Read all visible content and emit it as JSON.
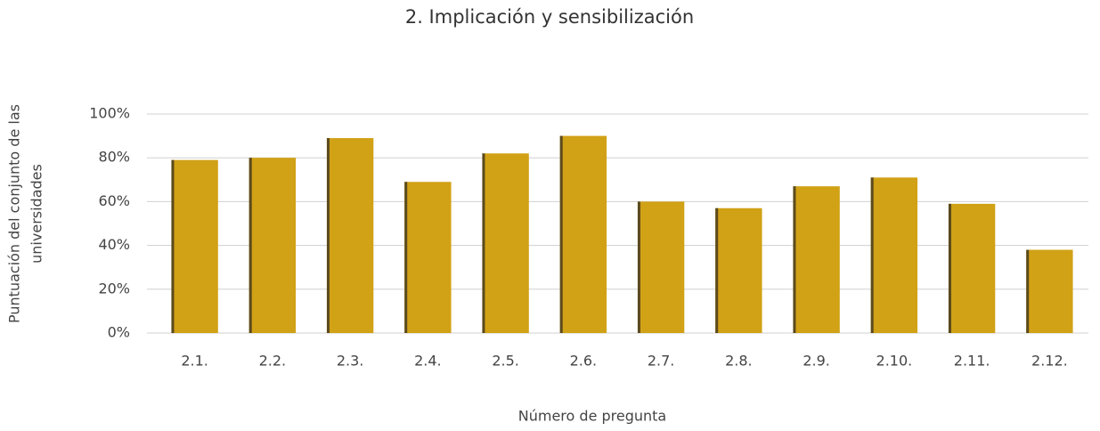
{
  "chart_data": {
    "type": "bar",
    "title": "2. Implicación y sensibilización",
    "xlabel": "Número de pregunta",
    "ylabel": [
      "Puntuación del conjunto de las",
      "universidades"
    ],
    "categories": [
      "2.1.",
      "2.2.",
      "2.3.",
      "2.4.",
      "2.5.",
      "2.6.",
      "2.7.",
      "2.8.",
      "2.9.",
      "2.10.",
      "2.11.",
      "2.12."
    ],
    "values": [
      79,
      80,
      89,
      69,
      82,
      90,
      60,
      57,
      67,
      71,
      59,
      38
    ],
    "color": "#d1a116",
    "edge_color": "#5a4a1e",
    "ylim": [
      0,
      100
    ],
    "yticks": [
      {
        "value": 0,
        "label": "0%"
      },
      {
        "value": 20,
        "label": "20%"
      },
      {
        "value": 40,
        "label": "40%"
      },
      {
        "value": 60,
        "label": "60%"
      },
      {
        "value": 80,
        "label": "80%"
      },
      {
        "value": 100,
        "label": "100%"
      }
    ],
    "grid": true
  }
}
